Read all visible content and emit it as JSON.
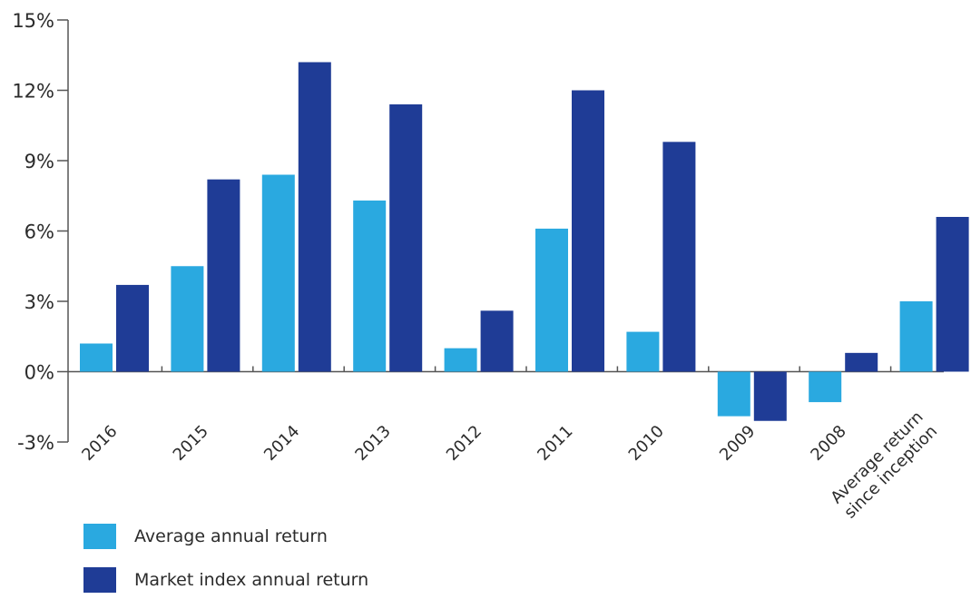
{
  "chart_data": {
    "type": "bar",
    "categories": [
      "2016",
      "2015",
      "2014",
      "2013",
      "2012",
      "2011",
      "2010",
      "2009",
      "2008",
      "Average return\nsince inception"
    ],
    "series": [
      {
        "name": "Average annual return",
        "color": "#2aa9e0",
        "values": [
          1.2,
          4.5,
          8.4,
          7.3,
          1.0,
          6.1,
          1.7,
          -1.9,
          -1.3,
          3.0
        ]
      },
      {
        "name": "Market index annual return",
        "color": "#1f3c96",
        "values": [
          3.7,
          8.2,
          13.2,
          11.4,
          2.6,
          12.0,
          9.8,
          -2.1,
          0.8,
          6.6
        ]
      }
    ],
    "yticks": [
      "15%",
      "12%",
      "9%",
      "6%",
      "3%",
      "0%",
      "-3%"
    ],
    "ytick_values": [
      15,
      12,
      9,
      6,
      3,
      0,
      -3
    ],
    "ylim": [
      -3,
      15
    ],
    "legend_position": "bottom-left",
    "grid": false
  }
}
